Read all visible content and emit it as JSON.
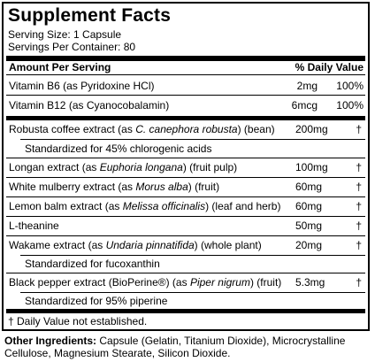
{
  "title": "Supplement Facts",
  "serving_size": "Serving Size: 1 Capsule",
  "servings_per_container": "Servings Per Container: 80",
  "header": {
    "amount": "Amount Per Serving",
    "dv": "% Daily Value"
  },
  "vitamins": [
    {
      "name": "Vitamin B6 (as Pyridoxine HCl)",
      "amount": "2mg",
      "dv": "100%"
    },
    {
      "name": "Vitamin B12 (as Cyanocobalamin)",
      "amount": "6mcg",
      "dv": "100%"
    }
  ],
  "ingredients": [
    {
      "pre": "Robusta coffee extract (as ",
      "latin": "C. canephora robusta",
      "post": ") (bean)",
      "amount": "200mg",
      "dv": "†",
      "note": "Standardized for 45% chlorogenic acids"
    },
    {
      "pre": "Longan extract (as ",
      "latin": "Euphoria longana",
      "post": ") (fruit pulp)",
      "amount": "100mg",
      "dv": "†"
    },
    {
      "pre": "White mulberry extract (as ",
      "latin": "Morus alba",
      "post": ") (fruit)",
      "amount": "60mg",
      "dv": "†"
    },
    {
      "pre": "Lemon balm extract (as ",
      "latin": "Melissa officinalis",
      "post": ") (leaf and herb)",
      "amount": "60mg",
      "dv": "†"
    },
    {
      "pre": "L-theanine",
      "latin": "",
      "post": "",
      "amount": "50mg",
      "dv": "†"
    },
    {
      "pre": "Wakame extract (as ",
      "latin": "Undaria pinnatifida",
      "post": ") (whole plant)",
      "amount": "20mg",
      "dv": "†",
      "note": "Standardized for fucoxanthin"
    },
    {
      "pre": "Black pepper extract (BioPerine®) (as ",
      "latin": "Piper nigrum",
      "post": ") (fruit)",
      "amount": "5.3mg",
      "dv": "†",
      "note": "Standardized for 95% piperine"
    }
  ],
  "footnote": "† Daily Value not established.",
  "other_ingredients": {
    "label": "Other Ingredients:",
    "text": " Capsule (Gelatin, Titanium Dioxide), Microcrystalline Cellulose, Magnesium Stearate, Silicon Dioxide."
  }
}
